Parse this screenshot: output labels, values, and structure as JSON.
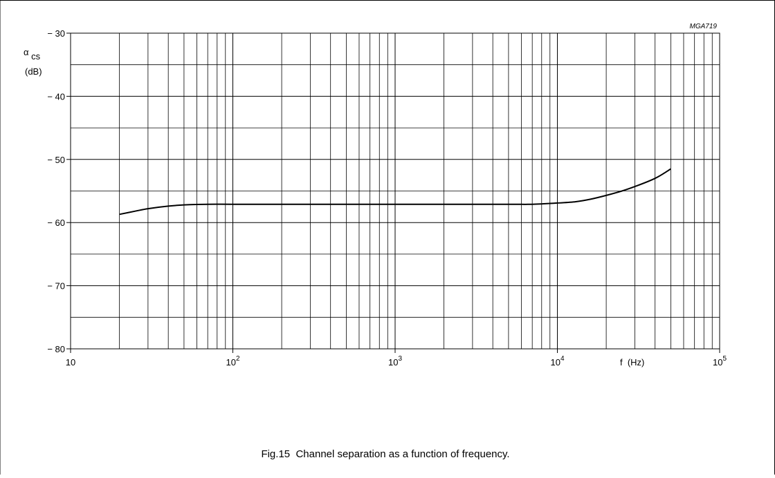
{
  "figure_id": "MGA719",
  "caption": "Fig.15  Channel separation as a function of frequency.",
  "chart_data": {
    "type": "line",
    "title": "",
    "xlabel": "f  (Hz)",
    "ylabel_symbol": "α",
    "ylabel_subscript": "cs",
    "ylabel_unit": "(dB)",
    "x_scale": "log",
    "xlim": [
      10,
      100000
    ],
    "ylim": [
      -80,
      -30
    ],
    "grid": true,
    "x_ticks": [
      {
        "value": 10,
        "base": "10",
        "exp": ""
      },
      {
        "value": 100,
        "base": "10",
        "exp": "2"
      },
      {
        "value": 1000,
        "base": "10",
        "exp": "3"
      },
      {
        "value": 10000,
        "base": "10",
        "exp": "4"
      },
      {
        "value": 100000,
        "base": "10",
        "exp": "5"
      }
    ],
    "y_ticks": [
      {
        "value": -30,
        "label": "− 30"
      },
      {
        "value": -40,
        "label": "− 40"
      },
      {
        "value": -50,
        "label": "− 50"
      },
      {
        "value": -60,
        "label": "− 60"
      },
      {
        "value": -70,
        "label": "− 70"
      },
      {
        "value": -80,
        "label": "− 80"
      }
    ],
    "series": [
      {
        "x": [
          20,
          25,
          30,
          40,
          50,
          70,
          100,
          200,
          500,
          1000,
          2000,
          5000,
          7000,
          10000,
          13000,
          16000,
          20000,
          25000,
          30000,
          40000,
          50000
        ],
        "y": [
          -58.7,
          -58.2,
          -57.8,
          -57.4,
          -57.2,
          -57.1,
          -57.1,
          -57.1,
          -57.1,
          -57.1,
          -57.1,
          -57.1,
          -57.1,
          -56.9,
          -56.7,
          -56.3,
          -55.7,
          -55.0,
          -54.3,
          -53.0,
          -51.5
        ]
      }
    ]
  }
}
